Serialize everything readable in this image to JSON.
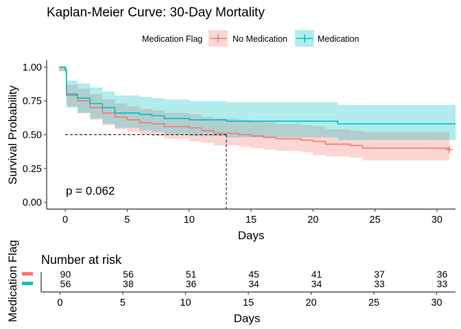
{
  "chart_data": [
    {
      "type": "line",
      "title": "Kaplan-Meier Curve: 30-Day Mortality",
      "xlabel": "Days",
      "ylabel": "Survival Probability",
      "xlim": [
        -1.5,
        31.5
      ],
      "ylim": [
        -0.05,
        1.05
      ],
      "x_ticks": [
        0,
        5,
        10,
        15,
        20,
        25,
        30
      ],
      "y_ticks": [
        0.0,
        0.25,
        0.5,
        0.75,
        1.0
      ],
      "y_tick_labels": [
        "0.00",
        "0.25",
        "0.50",
        "0.75",
        "1.00"
      ],
      "legend": {
        "title": "Medication Flag",
        "placement": "top",
        "entries": [
          "No Medication",
          "Medication"
        ]
      },
      "annotation": "p = 0.062",
      "median_line": {
        "y": 0.5,
        "x": 13
      },
      "series": [
        {
          "name": "No Medication",
          "color": "#F8766D",
          "band_color": "#F8766D",
          "steps": [
            [
              -0.5,
              1.0
            ],
            [
              0,
              0.98
            ],
            [
              0.1,
              0.79
            ],
            [
              1,
              0.75
            ],
            [
              2,
              0.7
            ],
            [
              3,
              0.66
            ],
            [
              4,
              0.63
            ],
            [
              5,
              0.61
            ],
            [
              6,
              0.59
            ],
            [
              7,
              0.58
            ],
            [
              8,
              0.56
            ],
            [
              10,
              0.55
            ],
            [
              11,
              0.53
            ],
            [
              12,
              0.51
            ],
            [
              14,
              0.5
            ],
            [
              15,
              0.49
            ],
            [
              16,
              0.48
            ],
            [
              17,
              0.47
            ],
            [
              19,
              0.46
            ],
            [
              20,
              0.45
            ],
            [
              21,
              0.43
            ],
            [
              23,
              0.42
            ],
            [
              24,
              0.4
            ],
            [
              31,
              0.4
            ]
          ],
          "upper": [
            [
              -0.5,
              1.0
            ],
            [
              0,
              1.0
            ],
            [
              0.1,
              0.87
            ],
            [
              1,
              0.84
            ],
            [
              2,
              0.8
            ],
            [
              3,
              0.76
            ],
            [
              4,
              0.73
            ],
            [
              5,
              0.71
            ],
            [
              6,
              0.69
            ],
            [
              7,
              0.68
            ],
            [
              8,
              0.66
            ],
            [
              10,
              0.65
            ],
            [
              11,
              0.63
            ],
            [
              12,
              0.62
            ],
            [
              14,
              0.61
            ],
            [
              15,
              0.6
            ],
            [
              16,
              0.59
            ],
            [
              17,
              0.58
            ],
            [
              19,
              0.57
            ],
            [
              20,
              0.56
            ],
            [
              21,
              0.54
            ],
            [
              23,
              0.53
            ],
            [
              24,
              0.52
            ],
            [
              31,
              0.52
            ]
          ],
          "lower": [
            [
              -0.5,
              0.97
            ],
            [
              0,
              0.95
            ],
            [
              0.1,
              0.71
            ],
            [
              1,
              0.66
            ],
            [
              2,
              0.61
            ],
            [
              3,
              0.57
            ],
            [
              4,
              0.54
            ],
            [
              5,
              0.52
            ],
            [
              6,
              0.5
            ],
            [
              7,
              0.49
            ],
            [
              8,
              0.47
            ],
            [
              10,
              0.45
            ],
            [
              11,
              0.44
            ],
            [
              12,
              0.42
            ],
            [
              14,
              0.41
            ],
            [
              15,
              0.4
            ],
            [
              16,
              0.39
            ],
            [
              17,
              0.38
            ],
            [
              19,
              0.37
            ],
            [
              20,
              0.35
            ],
            [
              21,
              0.34
            ],
            [
              23,
              0.33
            ],
            [
              24,
              0.31
            ],
            [
              31,
              0.31
            ]
          ],
          "censor": [
            [
              31,
              0.39
            ]
          ]
        },
        {
          "name": "Medication",
          "color": "#00BFC4",
          "band_color": "#00BFC4",
          "steps": [
            [
              -0.5,
              1.0
            ],
            [
              0,
              0.98
            ],
            [
              0.1,
              0.8
            ],
            [
              1,
              0.77
            ],
            [
              2,
              0.73
            ],
            [
              3,
              0.7
            ],
            [
              4,
              0.66
            ],
            [
              6,
              0.65
            ],
            [
              7,
              0.64
            ],
            [
              8,
              0.62
            ],
            [
              10,
              0.61
            ],
            [
              12,
              0.61
            ],
            [
              13,
              0.6
            ],
            [
              22,
              0.58
            ],
            [
              31.5,
              0.58
            ]
          ],
          "upper": [
            [
              -0.5,
              1.0
            ],
            [
              0,
              1.0
            ],
            [
              0.1,
              0.9
            ],
            [
              1,
              0.88
            ],
            [
              2,
              0.85
            ],
            [
              3,
              0.82
            ],
            [
              4,
              0.79
            ],
            [
              6,
              0.78
            ],
            [
              7,
              0.77
            ],
            [
              8,
              0.76
            ],
            [
              10,
              0.75
            ],
            [
              12,
              0.75
            ],
            [
              13,
              0.74
            ],
            [
              22,
              0.72
            ],
            [
              31.5,
              0.72
            ]
          ],
          "lower": [
            [
              -0.5,
              0.97
            ],
            [
              0,
              0.95
            ],
            [
              0.1,
              0.7
            ],
            [
              1,
              0.66
            ],
            [
              2,
              0.62
            ],
            [
              3,
              0.58
            ],
            [
              4,
              0.55
            ],
            [
              6,
              0.53
            ],
            [
              7,
              0.52
            ],
            [
              8,
              0.5
            ],
            [
              10,
              0.49
            ],
            [
              12,
              0.49
            ],
            [
              13,
              0.48
            ],
            [
              22,
              0.46
            ],
            [
              31.5,
              0.46
            ]
          ],
          "censor": []
        }
      ]
    },
    {
      "type": "table",
      "title": "Number at risk",
      "xlabel": "Days",
      "ylabel": "Medication Flag",
      "x_ticks": [
        0,
        5,
        10,
        15,
        20,
        25,
        30
      ],
      "rows": [
        {
          "name": "No Medication",
          "color": "#F8766D",
          "values": [
            90,
            56,
            51,
            45,
            41,
            37,
            36
          ]
        },
        {
          "name": "Medication",
          "color": "#00BFC4",
          "values": [
            56,
            38,
            36,
            34,
            34,
            33,
            33
          ]
        }
      ]
    }
  ]
}
